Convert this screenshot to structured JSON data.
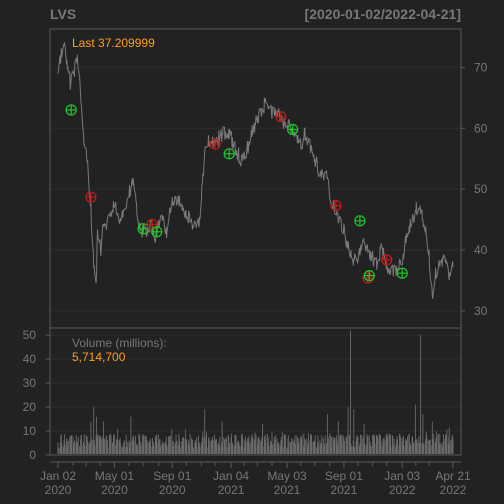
{
  "chart_data": {
    "type": "line",
    "title": "LVS",
    "date_range": "[2020-01-02/2022-04-21]",
    "price_panel": {
      "last_label": "Last 37.209999",
      "y_ticks": [
        30,
        40,
        50,
        60,
        70
      ],
      "ylim": [
        27.2,
        76.3
      ],
      "anchors": [
        [
          "2020-01-02",
          68.0
        ],
        [
          "2020-01-08",
          72.0
        ],
        [
          "2020-01-15",
          73.6
        ],
        [
          "2020-01-22",
          70.5
        ],
        [
          "2020-01-29",
          67.0
        ],
        [
          "2020-02-05",
          69.5
        ],
        [
          "2020-02-12",
          71.0
        ],
        [
          "2020-02-19",
          66.0
        ],
        [
          "2020-02-26",
          58.0
        ],
        [
          "2020-03-04",
          55.0
        ],
        [
          "2020-03-11",
          48.0
        ],
        [
          "2020-03-18",
          37.0
        ],
        [
          "2020-03-23",
          33.5
        ],
        [
          "2020-03-26",
          43.0
        ],
        [
          "2020-04-02",
          40.0
        ],
        [
          "2020-04-09",
          45.0
        ],
        [
          "2020-04-16",
          44.0
        ],
        [
          "2020-04-23",
          46.0
        ],
        [
          "2020-04-30",
          47.0
        ],
        [
          "2020-05-07",
          46.5
        ],
        [
          "2020-05-14",
          44.0
        ],
        [
          "2020-05-21",
          47.0
        ],
        [
          "2020-06-01",
          49.0
        ],
        [
          "2020-06-08",
          52.0
        ],
        [
          "2020-06-15",
          48.0
        ],
        [
          "2020-06-25",
          43.5
        ],
        [
          "2020-07-02",
          43.0
        ],
        [
          "2020-07-15",
          44.0
        ],
        [
          "2020-07-27",
          42.5
        ],
        [
          "2020-08-10",
          45.0
        ],
        [
          "2020-08-20",
          42.5
        ],
        [
          "2020-09-01",
          48.0
        ],
        [
          "2020-09-15",
          48.5
        ],
        [
          "2020-10-01",
          46.0
        ],
        [
          "2020-10-15",
          44.0
        ],
        [
          "2020-10-30",
          45.0
        ],
        [
          "2020-11-09",
          57.0
        ],
        [
          "2020-11-20",
          58.0
        ],
        [
          "2020-12-01",
          57.5
        ],
        [
          "2020-12-15",
          59.0
        ],
        [
          "2020-12-31",
          59.6
        ],
        [
          "2021-01-10",
          57.0
        ],
        [
          "2021-01-25",
          55.0
        ],
        [
          "2021-02-05",
          56.0
        ],
        [
          "2021-02-20",
          60.0
        ],
        [
          "2021-03-10",
          63.0
        ],
        [
          "2021-03-20",
          64.5
        ],
        [
          "2021-03-31",
          62.5
        ],
        [
          "2021-04-15",
          62.0
        ],
        [
          "2021-05-01",
          60.0
        ],
        [
          "2021-05-15",
          60.5
        ],
        [
          "2021-06-01",
          57.0
        ],
        [
          "2021-06-10",
          59.0
        ],
        [
          "2021-06-25",
          56.5
        ],
        [
          "2021-07-10",
          53.0
        ],
        [
          "2021-07-25",
          52.0
        ],
        [
          "2021-08-10",
          47.0
        ],
        [
          "2021-08-25",
          45.0
        ],
        [
          "2021-09-05",
          42.0
        ],
        [
          "2021-09-20",
          37.5
        ],
        [
          "2021-10-05",
          40.0
        ],
        [
          "2021-10-15",
          41.0
        ],
        [
          "2021-10-30",
          39.0
        ],
        [
          "2021-11-10",
          37.5
        ],
        [
          "2021-11-20",
          40.5
        ],
        [
          "2021-12-01",
          37.5
        ],
        [
          "2021-12-15",
          36.5
        ],
        [
          "2022-01-01",
          37.7
        ],
        [
          "2022-01-15",
          43.0
        ],
        [
          "2022-01-31",
          46.5
        ],
        [
          "2022-02-10",
          47.5
        ],
        [
          "2022-02-20",
          44.0
        ],
        [
          "2022-03-01",
          39.0
        ],
        [
          "2022-03-08",
          32.0
        ],
        [
          "2022-03-15",
          36.0
        ],
        [
          "2022-03-25",
          38.5
        ],
        [
          "2022-04-05",
          38.0
        ],
        [
          "2022-04-12",
          36.0
        ],
        [
          "2022-04-21",
          37.21
        ]
      ],
      "signals": [
        {
          "date": "2020-01-30",
          "price": 63.0,
          "type": "buy"
        },
        {
          "date": "2020-03-12",
          "price": 48.7,
          "type": "sell"
        },
        {
          "date": "2020-07-01",
          "price": 43.5,
          "type": "buy"
        },
        {
          "date": "2020-07-20",
          "price": 44.2,
          "type": "sell"
        },
        {
          "date": "2020-07-30",
          "price": 43.0,
          "type": "buy"
        },
        {
          "date": "2020-12-01",
          "price": 57.4,
          "type": "sell"
        },
        {
          "date": "2020-12-31",
          "price": 55.8,
          "type": "buy"
        },
        {
          "date": "2021-04-20",
          "price": 61.9,
          "type": "sell"
        },
        {
          "date": "2021-05-15",
          "price": 59.8,
          "type": "buy"
        },
        {
          "date": "2021-08-15",
          "price": 47.3,
          "type": "sell"
        },
        {
          "date": "2021-10-05",
          "price": 44.8,
          "type": "buy"
        },
        {
          "date": "2021-10-22",
          "price": 35.4,
          "type": "sell"
        },
        {
          "date": "2021-10-25",
          "price": 35.8,
          "type": "buy"
        },
        {
          "date": "2021-12-01",
          "price": 38.4,
          "type": "sell"
        },
        {
          "date": "2022-01-03",
          "price": 36.2,
          "type": "buy"
        }
      ]
    },
    "volume_panel": {
      "label": "Volume (millions):",
      "last_value": "5,714,700",
      "y_ticks": [
        0,
        10,
        20,
        30,
        40,
        50
      ],
      "ylim": [
        0,
        53
      ],
      "typical_range_millions": [
        3,
        9
      ],
      "spikes": [
        {
          "date": "2020-03-12",
          "value": 14
        },
        {
          "date": "2020-03-18",
          "value": 20
        },
        {
          "date": "2020-03-24",
          "value": 16
        },
        {
          "date": "2020-04-08",
          "value": 14
        },
        {
          "date": "2020-06-05",
          "value": 16
        },
        {
          "date": "2020-11-09",
          "value": 19
        },
        {
          "date": "2020-12-16",
          "value": 14
        },
        {
          "date": "2021-03-12",
          "value": 13
        },
        {
          "date": "2021-07-28",
          "value": 17
        },
        {
          "date": "2021-08-20",
          "value": 14
        },
        {
          "date": "2021-09-10",
          "value": 20
        },
        {
          "date": "2021-09-15",
          "value": 52
        },
        {
          "date": "2021-09-22",
          "value": 19
        },
        {
          "date": "2021-10-14",
          "value": 13
        },
        {
          "date": "2022-01-31",
          "value": 21
        },
        {
          "date": "2022-02-11",
          "value": 50
        },
        {
          "date": "2022-02-16",
          "value": 17
        },
        {
          "date": "2022-03-08",
          "value": 14
        }
      ]
    },
    "x_ticks": [
      {
        "date": "2020-01-02",
        "line1": "Jan 02",
        "line2": "2020"
      },
      {
        "date": "2020-05-01",
        "line1": "May 01",
        "line2": "2020"
      },
      {
        "date": "2020-09-01",
        "line1": "Sep 01",
        "line2": "2020"
      },
      {
        "date": "2021-01-04",
        "line1": "Jan 04",
        "line2": "2021"
      },
      {
        "date": "2021-05-03",
        "line1": "May 03",
        "line2": "2021"
      },
      {
        "date": "2021-09-01",
        "line1": "Sep 01",
        "line2": "2021"
      },
      {
        "date": "2022-01-03",
        "line1": "Jan 03",
        "line2": "2022"
      },
      {
        "date": "2022-04-21",
        "line1": "Apr 21",
        "line2": "2022"
      }
    ],
    "x_minor_ticks": [
      "2020-02-03",
      "2020-03-02",
      "2020-04-01",
      "2020-06-01",
      "2020-07-01",
      "2020-08-03",
      "2020-10-01",
      "2020-11-02",
      "2020-12-01",
      "2021-02-01",
      "2021-03-01",
      "2021-04-01",
      "2021-06-01",
      "2021-07-01",
      "2021-08-02",
      "2021-10-01",
      "2021-11-01",
      "2021-12-01",
      "2022-02-01",
      "2022-03-01"
    ],
    "colors": {
      "background": "#222222",
      "grid": "#2c2c2c",
      "frame": "#5a5a5a",
      "line": "#7a7a7a",
      "text": "#777777",
      "highlight": "#ff9f1a",
      "buy": "#1ec82a",
      "sell": "#c41b1b",
      "volume": "#6b6b6b"
    },
    "grid": true,
    "legend": "none"
  }
}
